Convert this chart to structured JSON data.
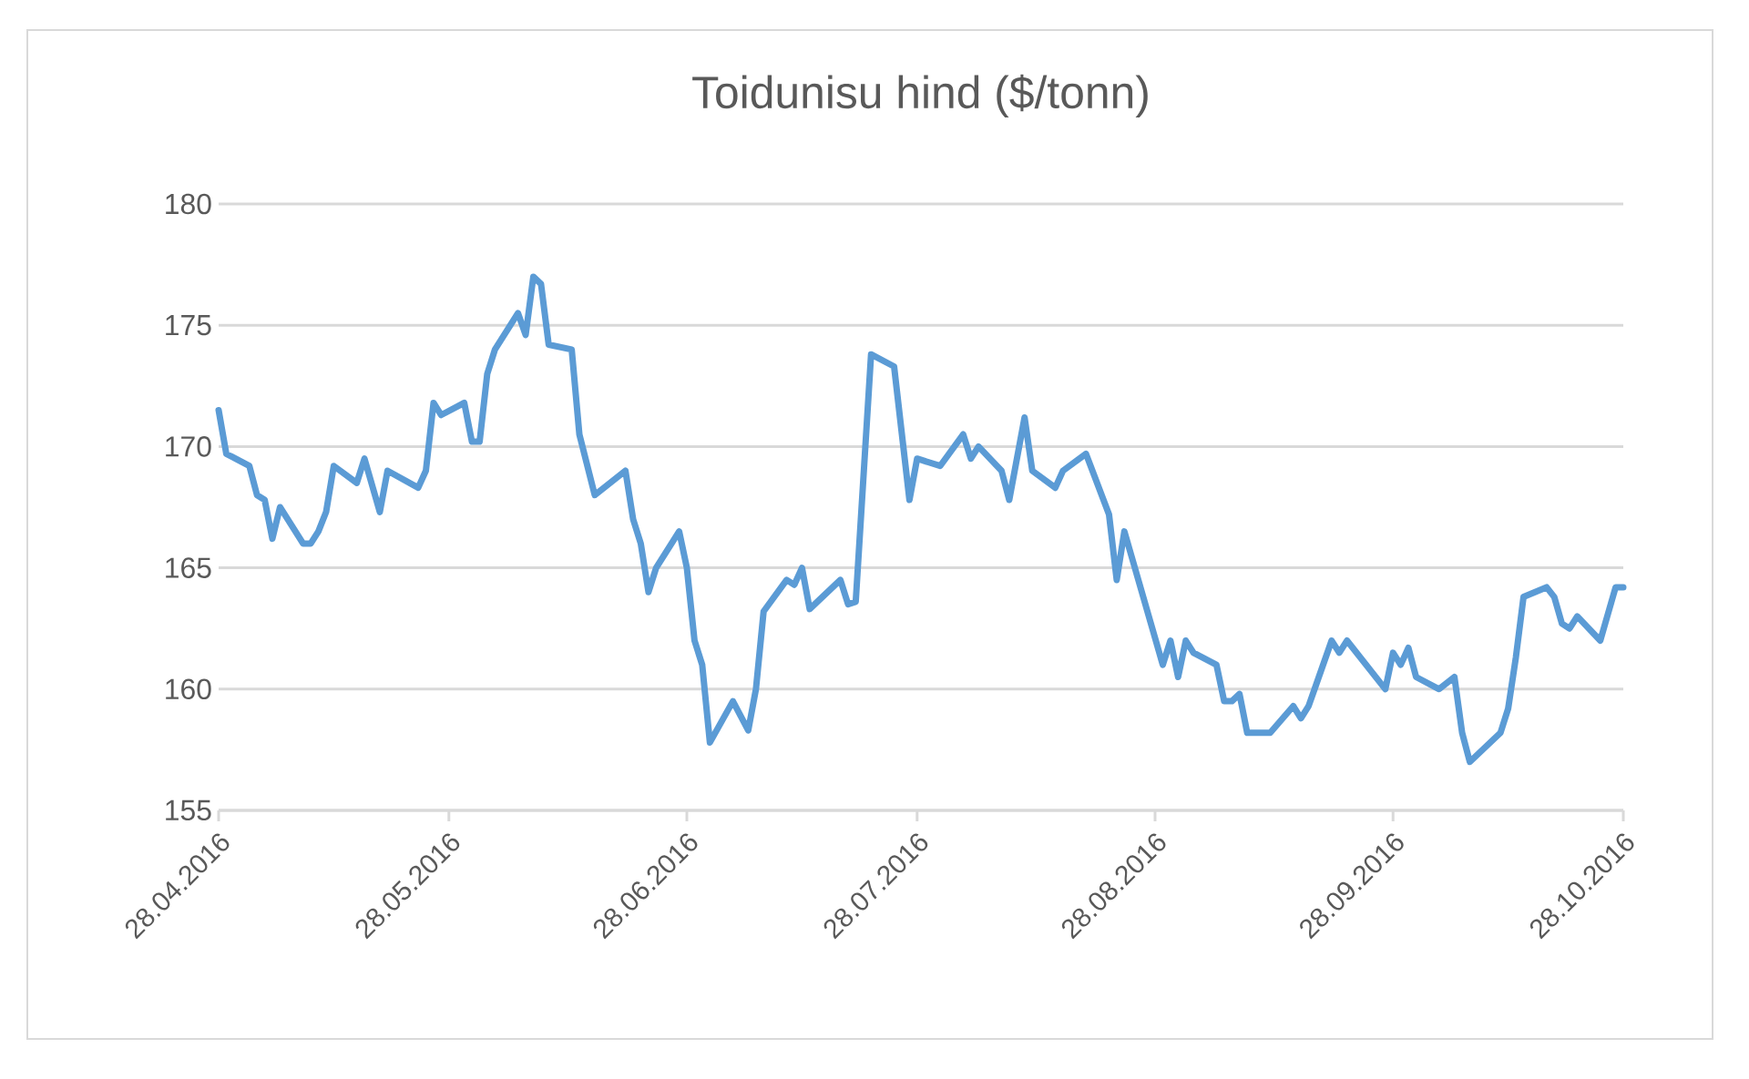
{
  "chart_data": {
    "type": "line",
    "title": "Toidunisu hind ($/tonn)",
    "x": [
      "2016-04-28",
      "2016-04-29",
      "2016-05-02",
      "2016-05-03",
      "2016-05-04",
      "2016-05-05",
      "2016-05-06",
      "2016-05-09",
      "2016-05-10",
      "2016-05-11",
      "2016-05-12",
      "2016-05-13",
      "2016-05-16",
      "2016-05-17",
      "2016-05-19",
      "2016-05-20",
      "2016-05-24",
      "2016-05-25",
      "2016-05-26",
      "2016-05-27",
      "2016-05-30",
      "2016-05-31",
      "2016-06-01",
      "2016-06-02",
      "2016-06-03",
      "2016-06-06",
      "2016-06-07",
      "2016-06-08",
      "2016-06-09",
      "2016-06-10",
      "2016-06-13",
      "2016-06-14",
      "2016-06-16",
      "2016-06-20",
      "2016-06-21",
      "2016-06-22",
      "2016-06-23",
      "2016-06-24",
      "2016-06-27",
      "2016-06-28",
      "2016-06-29",
      "2016-06-30",
      "2016-07-01",
      "2016-07-04",
      "2016-07-06",
      "2016-07-07",
      "2016-07-08",
      "2016-07-11",
      "2016-07-12",
      "2016-07-13",
      "2016-07-14",
      "2016-07-18",
      "2016-07-19",
      "2016-07-20",
      "2016-07-22",
      "2016-07-25",
      "2016-07-27",
      "2016-07-28",
      "2016-07-31",
      "2016-08-03",
      "2016-08-04",
      "2016-08-05",
      "2016-08-08",
      "2016-08-09",
      "2016-08-11",
      "2016-08-12",
      "2016-08-15",
      "2016-08-16",
      "2016-08-19",
      "2016-08-22",
      "2016-08-23",
      "2016-08-24",
      "2016-08-29",
      "2016-08-30",
      "2016-08-31",
      "2016-09-01",
      "2016-09-02",
      "2016-09-05",
      "2016-09-06",
      "2016-09-07",
      "2016-09-08",
      "2016-09-09",
      "2016-09-12",
      "2016-09-15",
      "2016-09-16",
      "2016-09-17",
      "2016-09-20",
      "2016-09-21",
      "2016-09-22",
      "2016-09-27",
      "2016-09-28",
      "2016-09-29",
      "2016-09-30",
      "2016-10-01",
      "2016-10-04",
      "2016-10-06",
      "2016-10-07",
      "2016-10-08",
      "2016-10-12",
      "2016-10-13",
      "2016-10-14",
      "2016-10-15",
      "2016-10-18",
      "2016-10-19",
      "2016-10-20",
      "2016-10-21",
      "2016-10-22",
      "2016-10-25",
      "2016-10-27",
      "2016-10-28"
    ],
    "series": [
      {
        "color": "#5b9bd5",
        "values": [
          171.5,
          169.7,
          169.2,
          168.0,
          167.8,
          166.2,
          167.5,
          166.0,
          166.0,
          166.5,
          167.3,
          169.2,
          168.5,
          169.5,
          167.3,
          169.0,
          168.3,
          169.0,
          171.8,
          171.3,
          171.8,
          170.2,
          170.2,
          173.0,
          174.0,
          175.5,
          174.6,
          177.0,
          176.7,
          174.2,
          174.0,
          170.5,
          168.0,
          169.0,
          167.0,
          166.0,
          164.0,
          165.0,
          166.5,
          165.0,
          162.0,
          161.0,
          157.8,
          159.5,
          158.3,
          160.0,
          163.2,
          164.5,
          164.3,
          165.0,
          163.3,
          164.5,
          163.5,
          163.6,
          173.8,
          173.3,
          167.8,
          169.5,
          169.2,
          170.5,
          169.5,
          170.0,
          169.0,
          167.8,
          171.2,
          169.0,
          168.3,
          169.0,
          169.7,
          167.2,
          164.5,
          166.5,
          161.0,
          162.0,
          160.5,
          162.0,
          161.5,
          161.0,
          159.5,
          159.5,
          159.8,
          158.2,
          158.2,
          159.3,
          158.8,
          159.3,
          162.0,
          161.5,
          162.0,
          160.0,
          161.5,
          161.0,
          161.7,
          160.5,
          160.0,
          160.5,
          158.2,
          157.0,
          158.2,
          159.2,
          161.3,
          163.8,
          164.2,
          163.8,
          162.7,
          162.5,
          163.0,
          162.0,
          164.2,
          164.2
        ]
      }
    ],
    "xlim": [
      "2016-04-28",
      "2016-10-28"
    ],
    "xticks": [
      {
        "value": "2016-04-28",
        "label": "28.04.2016"
      },
      {
        "value": "2016-05-28",
        "label": "28.05.2016"
      },
      {
        "value": "2016-06-28",
        "label": "28.06.2016"
      },
      {
        "value": "2016-07-28",
        "label": "28.07.2016"
      },
      {
        "value": "2016-08-28",
        "label": "28.08.2016"
      },
      {
        "value": "2016-09-28",
        "label": "28.09.2016"
      },
      {
        "value": "2016-10-28",
        "label": "28.10.2016"
      }
    ],
    "ylim": [
      155,
      180
    ],
    "yticks": [
      155,
      160,
      165,
      170,
      175,
      180
    ],
    "grid": "y"
  }
}
